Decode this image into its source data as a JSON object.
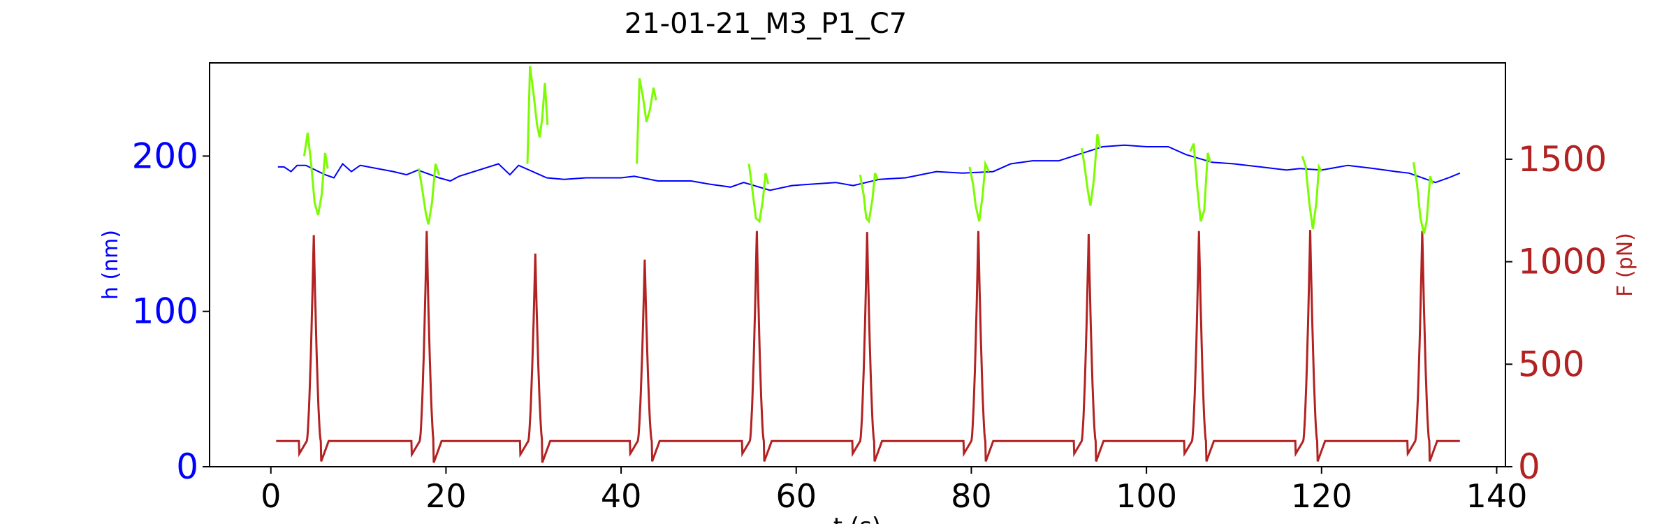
{
  "chart_data": {
    "type": "line",
    "title": "21-01-21_M3_P1_C7",
    "xlabel": "t (s)",
    "ylabel_left": "h (nm)",
    "ylabel_right": "F (pN)",
    "xlim": [
      -7,
      141
    ],
    "ylim_left": [
      0,
      260
    ],
    "ylim_right": [
      0,
      1970
    ],
    "x_ticks": [
      0,
      20,
      40,
      60,
      80,
      100,
      120,
      140
    ],
    "y_ticks_left": [
      0,
      100,
      200
    ],
    "y_ticks_right": [
      0,
      500,
      1000,
      1500
    ],
    "grid": false,
    "colors": {
      "height": "#0000ff",
      "height_during_force": "#7cfc00",
      "force": "#b22222",
      "axis": "#000000"
    },
    "pulse_centers": [
      4.9,
      17.8,
      30.2,
      42.7,
      55.5,
      68.1,
      80.8,
      93.4,
      106.0,
      118.7,
      131.5
    ],
    "pulse_peaks": [
      1130,
      1150,
      1040,
      1010,
      1150,
      1145,
      1150,
      1135,
      1150,
      1155,
      1150
    ],
    "height_baseline": [
      [
        0.8,
        193
      ],
      [
        1.5,
        193
      ],
      [
        2.3,
        190
      ],
      [
        3.0,
        194
      ],
      [
        4.0,
        194
      ],
      [
        6.2,
        188
      ],
      [
        7.2,
        186
      ],
      [
        8.2,
        195
      ],
      [
        9.2,
        190
      ],
      [
        10.2,
        194
      ],
      [
        14.0,
        190
      ],
      [
        15.5,
        188
      ],
      [
        16.8,
        191
      ],
      [
        19.2,
        186
      ],
      [
        20.5,
        184
      ],
      [
        21.5,
        187
      ],
      [
        26.0,
        195
      ],
      [
        27.3,
        188
      ],
      [
        28.3,
        194
      ],
      [
        31.5,
        186
      ],
      [
        33.5,
        185
      ],
      [
        36.0,
        186
      ],
      [
        40.0,
        186
      ],
      [
        41.5,
        187
      ],
      [
        44.2,
        184
      ],
      [
        46.5,
        184
      ],
      [
        48.0,
        184
      ],
      [
        50.0,
        182
      ],
      [
        52.5,
        180
      ],
      [
        54.0,
        183
      ],
      [
        57.0,
        178
      ],
      [
        59.5,
        181
      ],
      [
        62.0,
        182
      ],
      [
        64.5,
        183
      ],
      [
        66.5,
        181
      ],
      [
        69.5,
        185
      ],
      [
        72.5,
        186
      ],
      [
        76.0,
        190
      ],
      [
        79.0,
        189
      ],
      [
        82.5,
        190
      ],
      [
        84.5,
        195
      ],
      [
        87.0,
        197
      ],
      [
        90.0,
        197
      ],
      [
        92.2,
        201
      ],
      [
        95.0,
        206
      ],
      [
        97.5,
        207
      ],
      [
        100.0,
        206
      ],
      [
        102.5,
        206
      ],
      [
        104.5,
        201
      ],
      [
        107.5,
        196
      ],
      [
        110.0,
        195
      ],
      [
        113.0,
        193
      ],
      [
        116.0,
        191
      ],
      [
        117.5,
        192
      ],
      [
        120.0,
        191
      ],
      [
        123.0,
        194
      ],
      [
        126.0,
        192
      ],
      [
        128.5,
        190
      ],
      [
        130.0,
        189
      ],
      [
        133.0,
        183
      ],
      [
        134.5,
        186
      ],
      [
        135.8,
        189
      ]
    ],
    "height_force_segments": [
      [
        [
          3.8,
          200
        ],
        [
          4.2,
          215
        ],
        [
          4.6,
          195
        ],
        [
          5.0,
          170
        ],
        [
          5.4,
          162
        ],
        [
          5.8,
          175
        ],
        [
          6.2,
          202
        ],
        [
          6.5,
          192
        ]
      ],
      [
        [
          16.9,
          192
        ],
        [
          17.3,
          178
        ],
        [
          17.7,
          163
        ],
        [
          18.0,
          156
        ],
        [
          18.4,
          170
        ],
        [
          18.8,
          195
        ],
        [
          19.2,
          188
        ]
      ],
      [
        [
          29.3,
          195
        ],
        [
          29.6,
          258
        ],
        [
          30.0,
          240
        ],
        [
          30.4,
          220
        ],
        [
          30.7,
          212
        ],
        [
          31.0,
          225
        ],
        [
          31.3,
          247
        ],
        [
          31.6,
          220
        ]
      ],
      [
        [
          41.8,
          195
        ],
        [
          42.1,
          250
        ],
        [
          42.5,
          238
        ],
        [
          42.9,
          222
        ],
        [
          43.3,
          230
        ],
        [
          43.7,
          244
        ],
        [
          44.0,
          236
        ]
      ],
      [
        [
          54.6,
          195
        ],
        [
          55.0,
          178
        ],
        [
          55.4,
          160
        ],
        [
          55.8,
          158
        ],
        [
          56.2,
          172
        ],
        [
          56.5,
          189
        ],
        [
          56.8,
          182
        ]
      ],
      [
        [
          67.3,
          188
        ],
        [
          67.7,
          175
        ],
        [
          68.0,
          160
        ],
        [
          68.3,
          158
        ],
        [
          68.7,
          172
        ],
        [
          69.0,
          189
        ],
        [
          69.3,
          185
        ]
      ],
      [
        [
          79.8,
          193
        ],
        [
          80.2,
          182
        ],
        [
          80.5,
          168
        ],
        [
          80.9,
          158
        ],
        [
          81.3,
          175
        ],
        [
          81.6,
          195
        ],
        [
          82.0,
          190
        ]
      ],
      [
        [
          92.6,
          205
        ],
        [
          92.9,
          195
        ],
        [
          93.3,
          178
        ],
        [
          93.6,
          168
        ],
        [
          94.0,
          185
        ],
        [
          94.4,
          214
        ],
        [
          94.7,
          205
        ]
      ],
      [
        [
          105.0,
          203
        ],
        [
          105.4,
          208
        ],
        [
          105.8,
          180
        ],
        [
          106.2,
          158
        ],
        [
          106.6,
          165
        ],
        [
          107.0,
          202
        ],
        [
          107.3,
          196
        ]
      ],
      [
        [
          117.8,
          200
        ],
        [
          118.2,
          193
        ],
        [
          118.6,
          170
        ],
        [
          119.0,
          153
        ],
        [
          119.4,
          170
        ],
        [
          119.7,
          193
        ],
        [
          120.0,
          190
        ]
      ],
      [
        [
          130.5,
          196
        ],
        [
          130.9,
          182
        ],
        [
          131.3,
          160
        ],
        [
          131.7,
          150
        ],
        [
          132.0,
          158
        ],
        [
          132.4,
          187
        ],
        [
          132.7,
          182
        ]
      ]
    ],
    "force_baseline": 125,
    "force_trough": 20,
    "force_x_range": [
      0.6,
      135.8
    ]
  }
}
